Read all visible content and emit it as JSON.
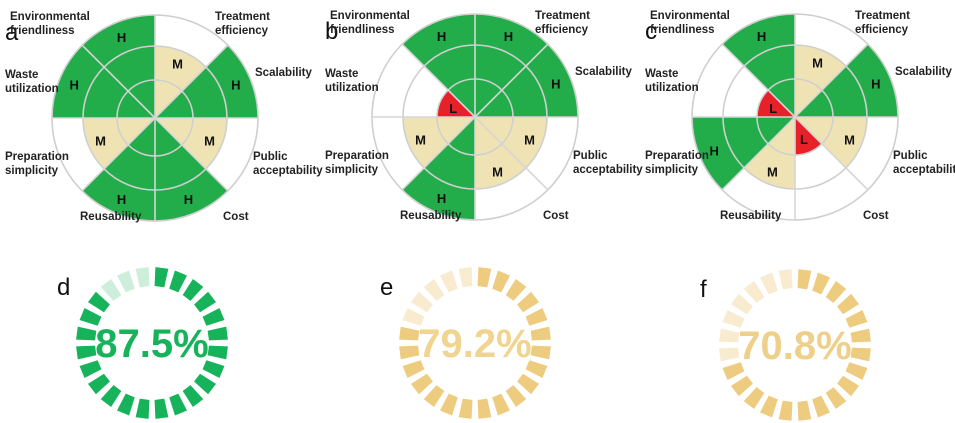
{
  "chart_data": [
    {
      "type": "radar-sector",
      "panel": "a",
      "axes": [
        "Treatment efficiency",
        "Scalability",
        "Public acceptability",
        "Cost",
        "Reusability",
        "Preparation simplicity",
        "Waste utilization",
        "Environmental friendliness"
      ],
      "levels": [
        "M",
        "H",
        "M",
        "H",
        "H",
        "M",
        "H",
        "H"
      ]
    },
    {
      "type": "radar-sector",
      "panel": "b",
      "axes": [
        "Treatment efficiency",
        "Scalability",
        "Public acceptability",
        "Cost",
        "Reusability",
        "Preparation simplicity",
        "Waste utilization",
        "Environmental friendliness"
      ],
      "levels": [
        "H",
        "H",
        "M",
        "M",
        "H",
        "M",
        "L",
        "H"
      ]
    },
    {
      "type": "radar-sector",
      "panel": "c",
      "axes": [
        "Treatment efficiency",
        "Scalability",
        "Public acceptability",
        "Cost",
        "Reusability",
        "Preparation simplicity",
        "Waste utilization",
        "Environmental friendliness"
      ],
      "levels": [
        "M",
        "H",
        "M",
        "L",
        "M",
        "H",
        "L",
        "H"
      ]
    },
    {
      "type": "segmented-ring",
      "panel": "d",
      "value": 87.5,
      "label": "87.5%",
      "segments": 24,
      "filled": 21,
      "color": "#16b35a",
      "empty_color": "#cdeedb"
    },
    {
      "type": "segmented-ring",
      "panel": "e",
      "value": 79.2,
      "label": "79.2%",
      "segments": 24,
      "filled": 19,
      "color": "#edcc80",
      "empty_color": "#f8ebd0"
    },
    {
      "type": "segmented-ring",
      "panel": "f",
      "value": 70.8,
      "label": "70.8%",
      "segments": 24,
      "filled": 17,
      "color": "#edcc80",
      "empty_color": "#f8ebd0"
    }
  ],
  "level_colors": {
    "H": "#22ad4a",
    "M": "#efe3b4",
    "L": "#e8202a"
  },
  "pct_colors": {
    "d": "#16b35a",
    "e": "#f0d48f",
    "f": "#efd08a"
  }
}
